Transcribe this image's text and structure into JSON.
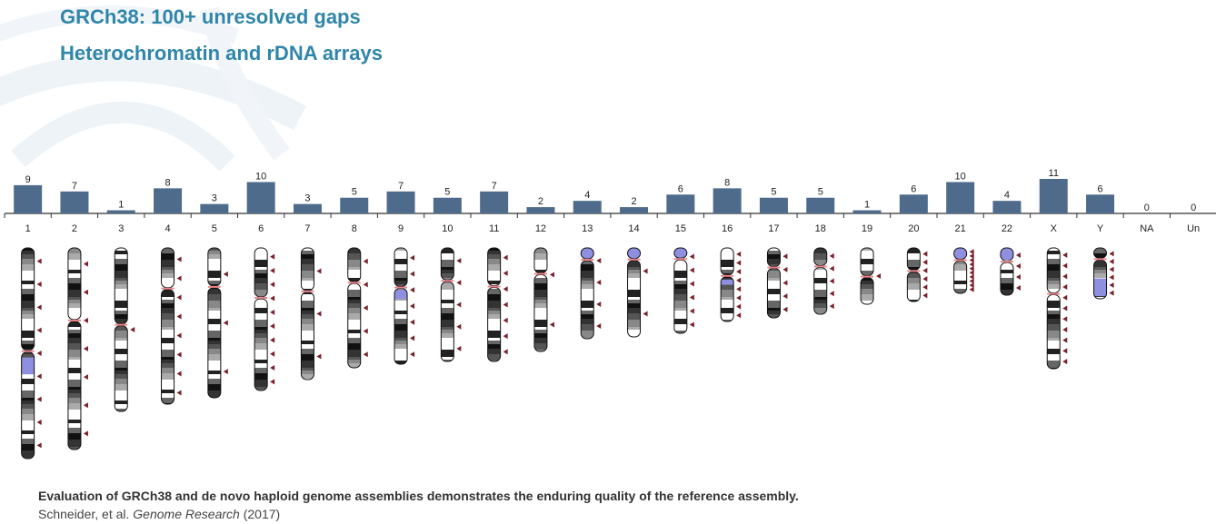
{
  "title": "GRCh38: 100+ unresolved gaps",
  "subtitle": "Heterochromatin and rDNA arrays",
  "caption": "Evaluation of GRCh38 and de novo haploid genome assemblies demonstrates the enduring quality of the reference assembly.",
  "citation": {
    "authors": "Schneider, et al.",
    "journal": "Genome Research",
    "year": "(2017)"
  },
  "colors": {
    "title": "#2f86aa",
    "bar": "#4f6b8c",
    "axis": "#333333",
    "gap_marker": "#7a1f2b",
    "centromere": "#e8868a",
    "heterochromatin": "#8f8fe0"
  },
  "chart_data": {
    "type": "bar",
    "categories": [
      "1",
      "2",
      "3",
      "4",
      "5",
      "6",
      "7",
      "8",
      "9",
      "10",
      "11",
      "12",
      "13",
      "14",
      "15",
      "16",
      "17",
      "18",
      "19",
      "20",
      "21",
      "22",
      "X",
      "Y",
      "NA",
      "Un"
    ],
    "values": [
      9,
      7,
      1,
      8,
      3,
      10,
      3,
      5,
      7,
      5,
      7,
      2,
      4,
      2,
      6,
      8,
      5,
      5,
      1,
      6,
      10,
      4,
      11,
      6,
      0,
      0
    ],
    "ylim": [
      0,
      11
    ],
    "data_labels": true,
    "grid": false,
    "legend": "none",
    "xlabel": "",
    "ylabel": ""
  }
}
